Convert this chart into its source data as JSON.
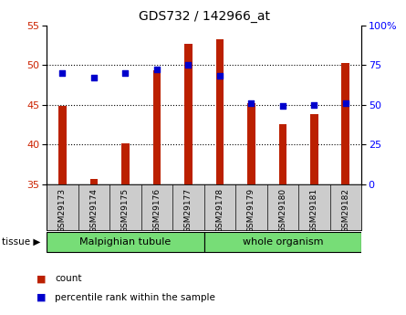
{
  "title": "GDS732 / 142966_at",
  "samples": [
    "GSM29173",
    "GSM29174",
    "GSM29175",
    "GSM29176",
    "GSM29177",
    "GSM29178",
    "GSM29179",
    "GSM29180",
    "GSM29181",
    "GSM29182"
  ],
  "count_values": [
    44.8,
    35.7,
    40.1,
    49.3,
    52.7,
    53.2,
    45.2,
    42.5,
    43.8,
    50.2
  ],
  "percentile_values": [
    70,
    67,
    70,
    72,
    75,
    68,
    51,
    49,
    50,
    51
  ],
  "left_ylim": [
    35,
    55
  ],
  "left_yticks": [
    35,
    40,
    45,
    50,
    55
  ],
  "right_ylim": [
    0,
    100
  ],
  "right_yticks": [
    0,
    25,
    50,
    75,
    100
  ],
  "right_yticklabels": [
    "0",
    "25",
    "50",
    "75",
    "100%"
  ],
  "bar_color": "#bb2000",
  "scatter_color": "#0000cc",
  "bar_width": 0.25,
  "grid_yticks": [
    40,
    45,
    50
  ],
  "legend_count_label": "count",
  "legend_pct_label": "percentile rank within the sample",
  "tissue_label": "tissue",
  "tissue_groups": [
    {
      "label": "Malpighian tubule",
      "n": 5
    },
    {
      "label": "whole organism",
      "n": 5
    }
  ],
  "bg_color": "#ffffff",
  "xtick_bg": "#cccccc",
  "tissue_color": "#77dd77"
}
